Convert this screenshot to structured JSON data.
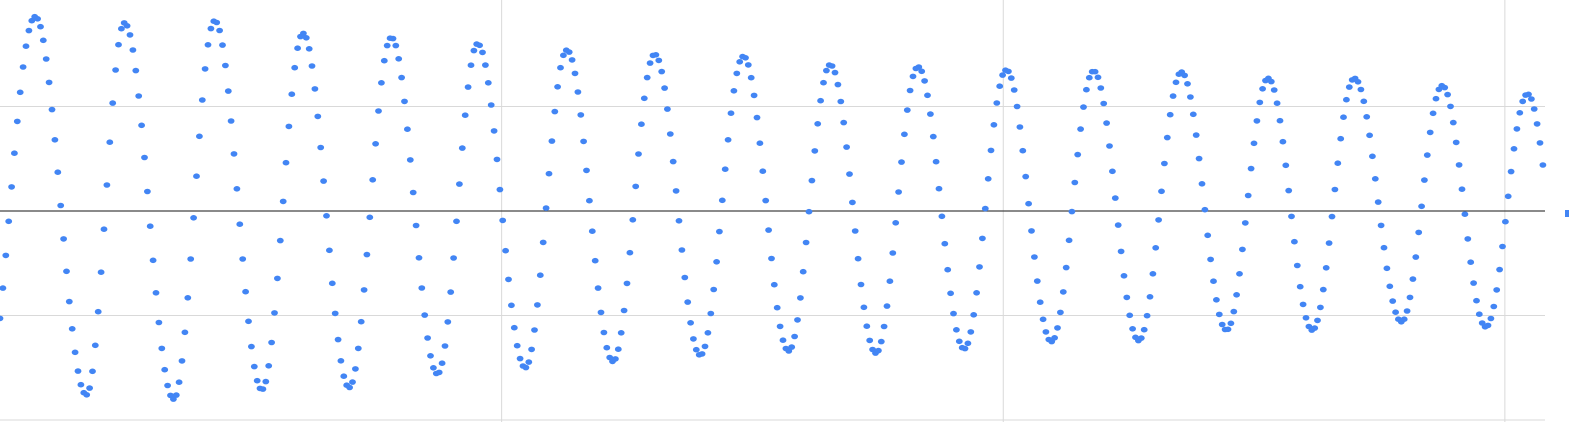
{
  "chart_data": {
    "type": "scatter",
    "title": "",
    "xlabel": "",
    "ylabel": "",
    "grid": true,
    "legend": "none",
    "colors": {
      "series": "#4285f4",
      "grid": "#d9d9d9",
      "zero_line": "#444444"
    },
    "xlim": [
      0,
      30.8
    ],
    "ylim": [
      -2,
      2
    ],
    "x_gridlines": [
      10,
      20,
      30
    ],
    "y_gridlines": [
      -1,
      0,
      1
    ],
    "series": [
      {
        "name": "",
        "style": "dots",
        "sample_step": 0.0576,
        "wave": {
          "amplitude_start": 1.85,
          "amplitude_end": 1.1,
          "period_start": 1.72,
          "period_end": 1.76
        },
        "peaks": [
          {
            "x": 0.7,
            "y": 1.86
          },
          {
            "x": 2.48,
            "y": 1.8
          },
          {
            "x": 4.28,
            "y": 1.82
          },
          {
            "x": 6.04,
            "y": 1.7
          },
          {
            "x": 7.8,
            "y": 1.66
          },
          {
            "x": 9.52,
            "y": 1.6
          },
          {
            "x": 11.3,
            "y": 1.54
          },
          {
            "x": 13.05,
            "y": 1.5
          },
          {
            "x": 14.82,
            "y": 1.48
          },
          {
            "x": 16.55,
            "y": 1.4
          },
          {
            "x": 18.3,
            "y": 1.38
          },
          {
            "x": 20.06,
            "y": 1.35
          },
          {
            "x": 21.8,
            "y": 1.34
          },
          {
            "x": 23.55,
            "y": 1.33
          },
          {
            "x": 25.28,
            "y": 1.27
          },
          {
            "x": 27.0,
            "y": 1.27
          },
          {
            "x": 28.75,
            "y": 1.2
          },
          {
            "x": 30.45,
            "y": 1.12
          }
        ],
        "troughs": [
          {
            "x": 1.72,
            "y": -1.76
          },
          {
            "x": 3.46,
            "y": -1.8
          },
          {
            "x": 5.22,
            "y": -1.71
          },
          {
            "x": 6.96,
            "y": -1.69
          },
          {
            "x": 8.72,
            "y": -1.56
          },
          {
            "x": 10.47,
            "y": -1.5
          },
          {
            "x": 12.22,
            "y": -1.44
          },
          {
            "x": 13.96,
            "y": -1.38
          },
          {
            "x": 15.72,
            "y": -1.34
          },
          {
            "x": 17.46,
            "y": -1.36
          },
          {
            "x": 19.22,
            "y": -1.32
          },
          {
            "x": 20.96,
            "y": -1.25
          },
          {
            "x": 22.7,
            "y": -1.24
          },
          {
            "x": 24.45,
            "y": -1.14
          },
          {
            "x": 26.16,
            "y": -1.14
          },
          {
            "x": 27.94,
            "y": -1.06
          },
          {
            "x": 29.62,
            "y": -1.11
          }
        ]
      }
    ]
  }
}
